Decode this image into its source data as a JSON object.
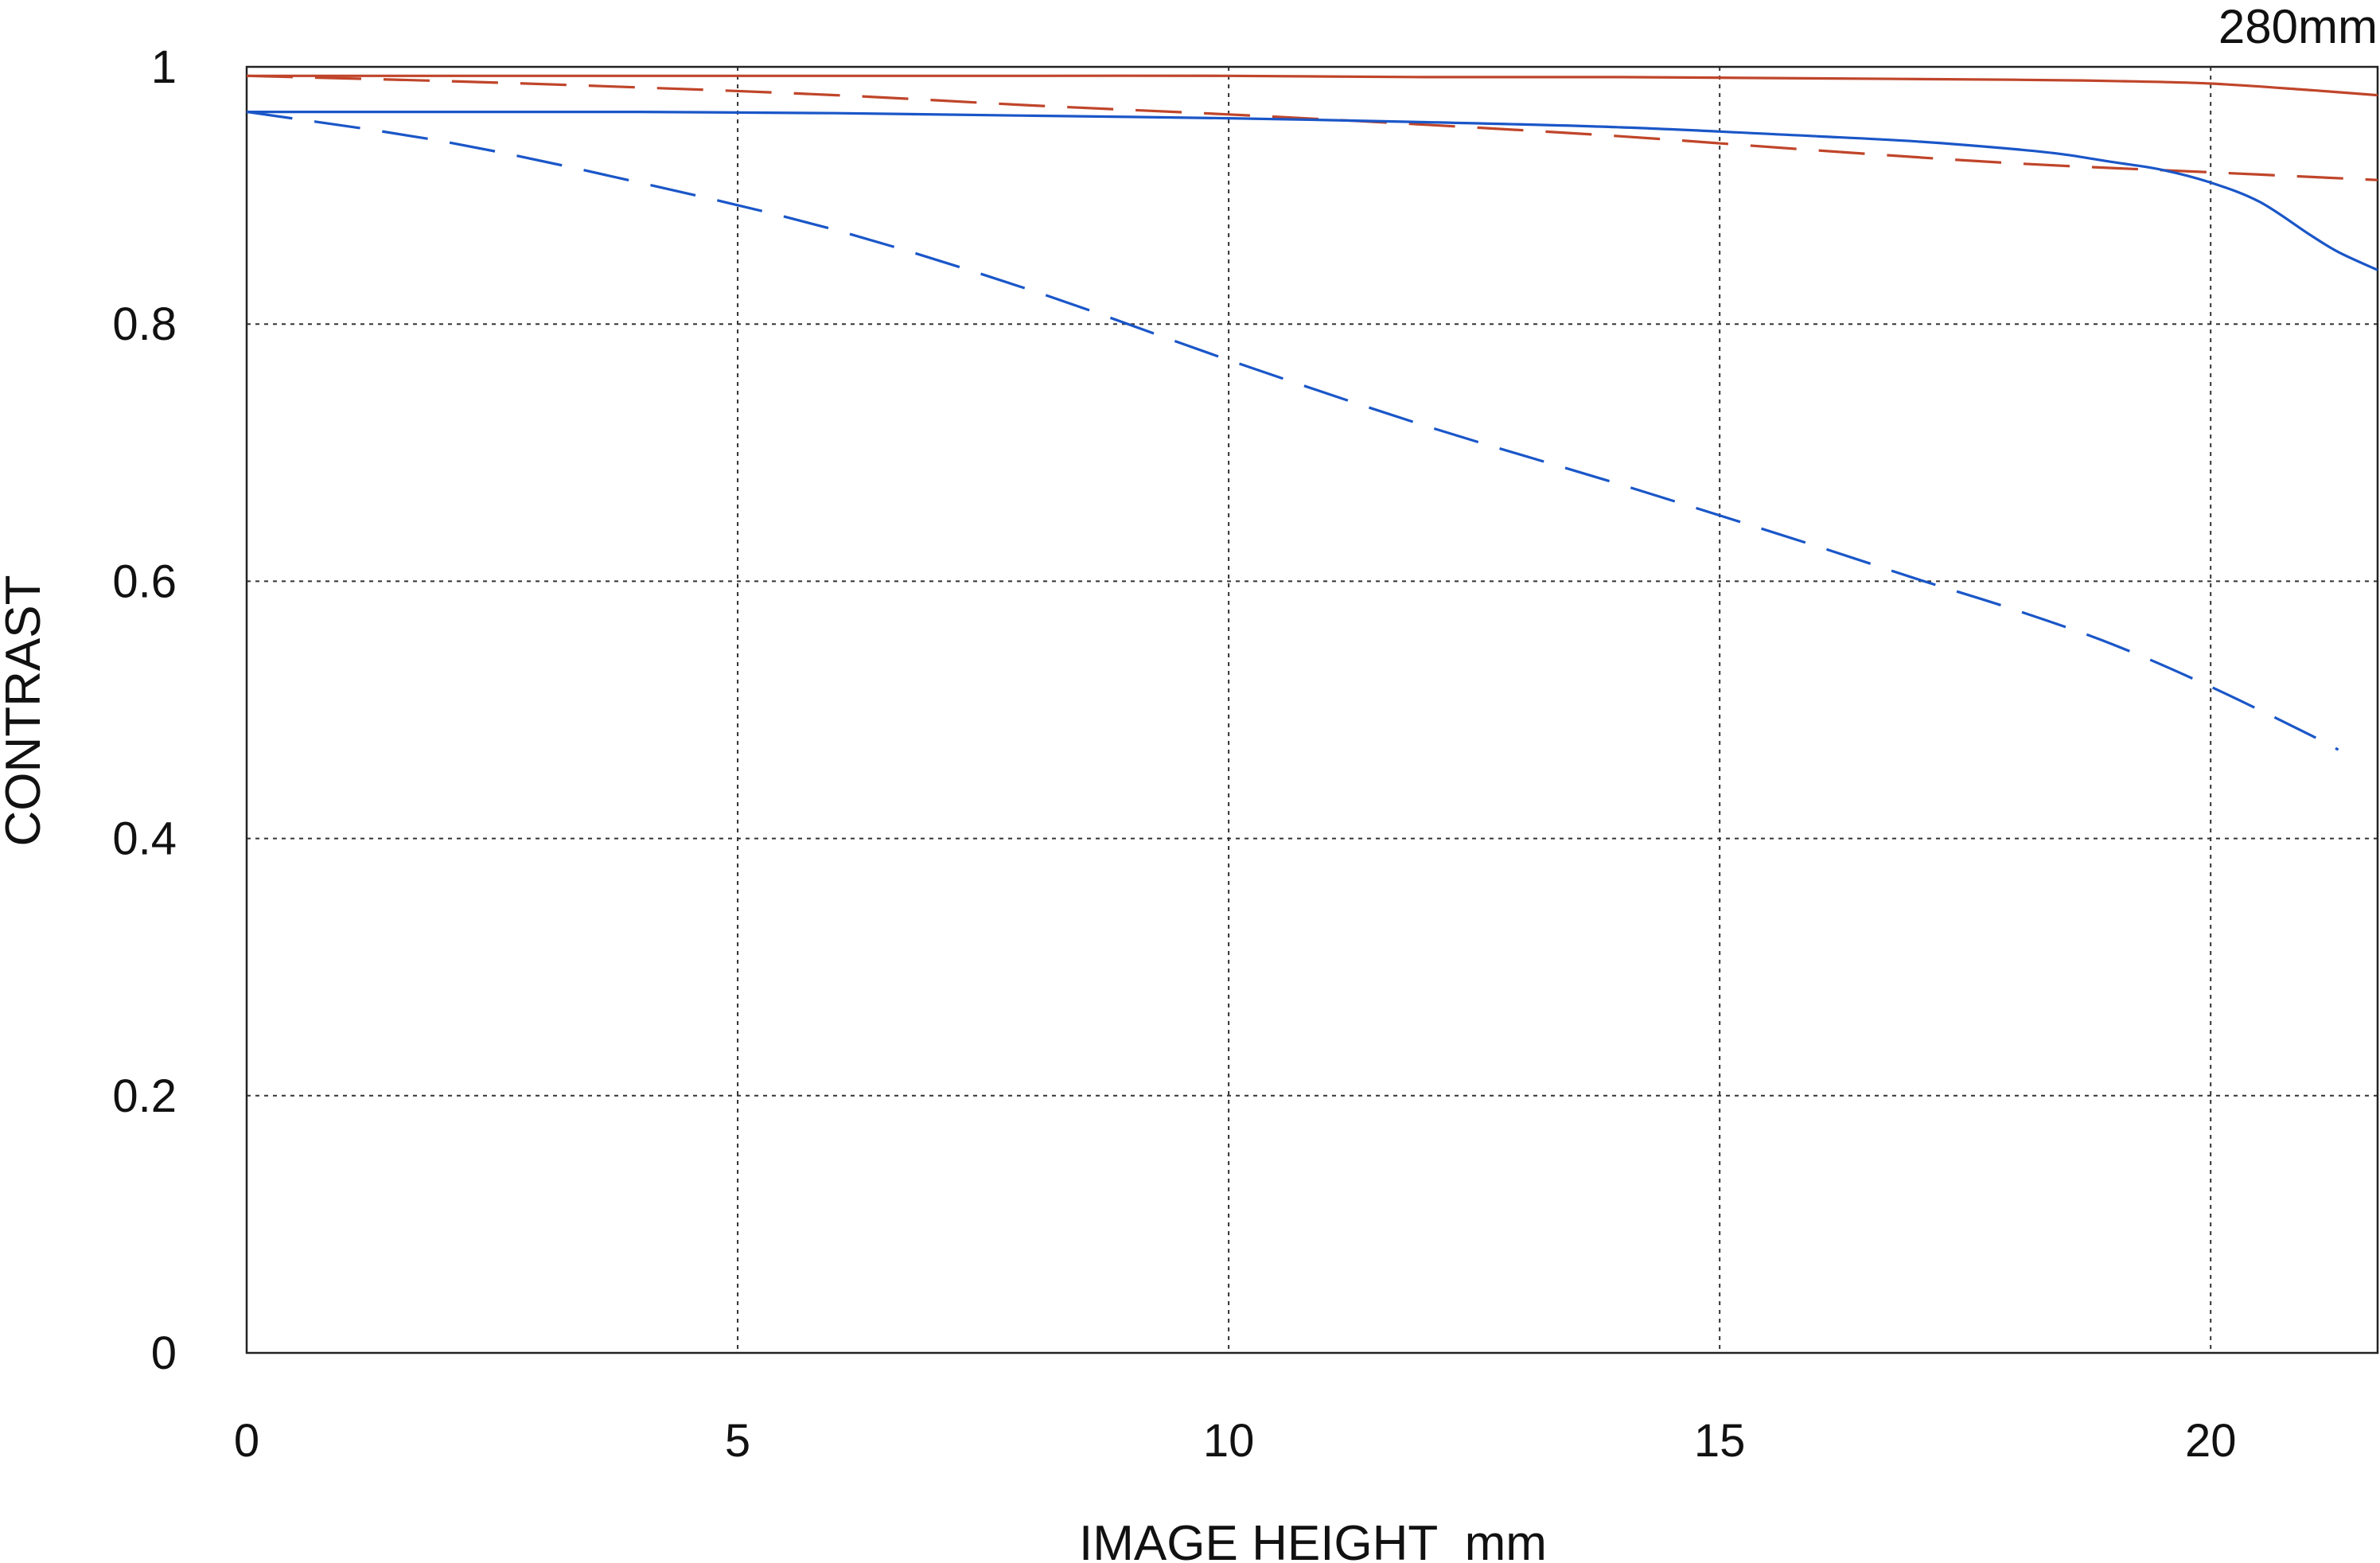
{
  "chart_data": {
    "type": "line",
    "title": "280mm",
    "xlabel": "IMAGE HEIGHT  mm",
    "ylabel": "CONTRAST",
    "xlim": [
      0,
      21.7
    ],
    "ylim": [
      0,
      1
    ],
    "xticks": [
      0,
      5,
      10,
      15,
      20
    ],
    "xtick_labels": [
      "0",
      "5",
      "10",
      "15",
      "20"
    ],
    "yticks": [
      0,
      0.2,
      0.4,
      0.6,
      0.8,
      1
    ],
    "ytick_labels": [
      "0",
      "0.2",
      "0.4",
      "0.6",
      "0.8",
      "1"
    ],
    "grid": true,
    "series": [
      {
        "color": "#c0452a",
        "style": "solid",
        "x": [
          0,
          2,
          4,
          6,
          8,
          10,
          12,
          14,
          16,
          18,
          19,
          20,
          21,
          21.7
        ],
        "y": [
          0.993,
          0.993,
          0.993,
          0.993,
          0.993,
          0.993,
          0.992,
          0.992,
          0.991,
          0.99,
          0.989,
          0.987,
          0.982,
          0.978
        ]
      },
      {
        "color": "#c0452a",
        "style": "dashed",
        "x": [
          0,
          2,
          4,
          6,
          8,
          10,
          12,
          14,
          16,
          18,
          20,
          21.7
        ],
        "y": [
          0.993,
          0.989,
          0.984,
          0.978,
          0.97,
          0.963,
          0.955,
          0.946,
          0.935,
          0.925,
          0.918,
          0.912
        ]
      },
      {
        "color": "#1a56c8",
        "style": "solid",
        "x": [
          0,
          2,
          4,
          6,
          8,
          10,
          12,
          14,
          16,
          17,
          18,
          18.5,
          19,
          19.5,
          20,
          20.5,
          21,
          21.3,
          21.7
        ],
        "y": [
          0.965,
          0.965,
          0.965,
          0.964,
          0.962,
          0.96,
          0.957,
          0.953,
          0.946,
          0.942,
          0.936,
          0.932,
          0.926,
          0.92,
          0.91,
          0.895,
          0.87,
          0.856,
          0.842
        ]
      },
      {
        "color": "#1a56c8",
        "style": "dashed",
        "x": [
          0,
          2,
          4,
          6,
          8,
          10,
          12,
          14,
          16,
          17,
          18,
          19,
          20,
          21,
          21.3
        ],
        "y": [
          0.965,
          0.942,
          0.91,
          0.873,
          0.826,
          0.772,
          0.721,
          0.675,
          0.627,
          0.602,
          0.578,
          0.551,
          0.518,
          0.481,
          0.469
        ]
      }
    ]
  }
}
